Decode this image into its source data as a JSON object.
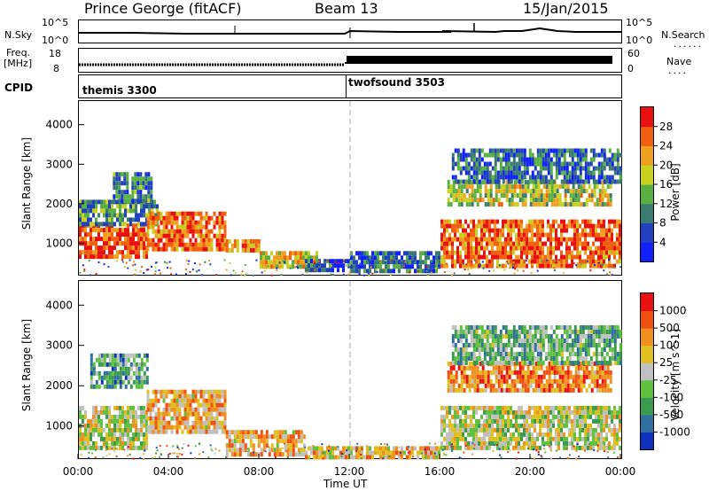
{
  "header": {
    "title": "Prince George (fitACF)",
    "beam": "Beam 13",
    "date": "15/Jan/2015"
  },
  "top_panels": {
    "nsky_label": "N.Sky",
    "nsearch_label": "N.Search",
    "freq_label_1": "Freq.",
    "freq_label_2": "[MHz]",
    "nave_label": "Nave",
    "cpid_label": "CPID",
    "nsky_ticks": [
      "10^5",
      "10^0"
    ],
    "nsearch_ticks": [
      "10^5",
      "10^0"
    ],
    "freq_ticks": [
      "18",
      "8"
    ],
    "nave_ticks": [
      "60",
      "0"
    ],
    "cpid_segments": [
      {
        "name": "themis 3300",
        "start_hour": 0,
        "end_hour": 12
      },
      {
        "name": "twofsound 3503",
        "start_hour": 12,
        "end_hour": 24
      }
    ]
  },
  "x_axis": {
    "label": "Time UT",
    "ticks": [
      "00:00",
      "04:00",
      "08:00",
      "12:00",
      "16:00",
      "20:00",
      "00:00"
    ]
  },
  "chart_data": [
    {
      "type": "heatmap",
      "panel": "power",
      "ylabel": "Slant Range [km]",
      "yticks": [
        1000,
        2000,
        3000,
        4000
      ],
      "ylim": [
        200,
        4600
      ],
      "xlim_hours": [
        0,
        24
      ],
      "colorbar_label": "Power [dB]",
      "colorbar_ticks": [
        "4",
        "8",
        "12",
        "16",
        "20",
        "24",
        "28"
      ],
      "colorbar_colors": [
        "#1020ff",
        "#2040c0",
        "#3a7a70",
        "#58b040",
        "#c8d020",
        "#f0a020",
        "#f06010",
        "#e81010"
      ],
      "bands": [
        {
          "t0": 0.0,
          "t1": 3.0,
          "r0": 700,
          "r1": 1500,
          "level": 0.85
        },
        {
          "t0": 0.0,
          "t1": 3.5,
          "r0": 1500,
          "r1": 2100,
          "level": 0.35
        },
        {
          "t0": 1.5,
          "t1": 3.2,
          "r0": 2100,
          "r1": 2800,
          "level": 0.3
        },
        {
          "t0": 3.0,
          "t1": 6.5,
          "r0": 900,
          "r1": 1800,
          "level": 0.8
        },
        {
          "t0": 6.5,
          "t1": 8.0,
          "r0": 800,
          "r1": 1100,
          "level": 0.75
        },
        {
          "t0": 8.0,
          "t1": 10.5,
          "r0": 400,
          "r1": 800,
          "level": 0.6
        },
        {
          "t0": 10.0,
          "t1": 12.0,
          "r0": 300,
          "r1": 600,
          "level": 0.2
        },
        {
          "t0": 12.0,
          "t1": 16.0,
          "r0": 300,
          "r1": 800,
          "level": 0.25
        },
        {
          "t0": 16.0,
          "t1": 24.0,
          "r0": 400,
          "r1": 1600,
          "level": 0.8
        },
        {
          "t0": 16.3,
          "t1": 23.5,
          "r0": 2000,
          "r1": 2600,
          "level": 0.55
        },
        {
          "t0": 16.5,
          "t1": 24.0,
          "r0": 2600,
          "r1": 3400,
          "level": 0.25
        }
      ]
    },
    {
      "type": "heatmap",
      "panel": "velocity",
      "ylabel": "Slant Range [km]",
      "yticks": [
        1000,
        2000,
        3000,
        4000
      ],
      "ylim": [
        200,
        4600
      ],
      "xlim_hours": [
        0,
        24
      ],
      "colorbar_label": "Velocity [m s^-1]",
      "colorbar_ticks": [
        "1000",
        "500",
        "100",
        "25",
        "-25",
        "-100",
        "-500",
        "-1000"
      ],
      "colorbar_colors": [
        "#1030c0",
        "#3070a0",
        "#3a9a50",
        "#60c040",
        "#c0c0c0",
        "#e0c020",
        "#f09020",
        "#f05010",
        "#e81010"
      ],
      "bands": [
        {
          "t0": 0.0,
          "t1": 3.0,
          "r0": 500,
          "r1": 1500,
          "level": 0.5
        },
        {
          "t0": 0.5,
          "t1": 3.0,
          "r0": 2000,
          "r1": 2800,
          "level": 0.3
        },
        {
          "t0": 3.0,
          "t1": 6.5,
          "r0": 900,
          "r1": 1900,
          "level": 0.65
        },
        {
          "t0": 6.5,
          "t1": 10.0,
          "r0": 300,
          "r1": 900,
          "level": 0.65
        },
        {
          "t0": 10.0,
          "t1": 16.0,
          "r0": 200,
          "r1": 500,
          "level": 0.6
        },
        {
          "t0": 16.0,
          "t1": 24.0,
          "r0": 400,
          "r1": 1500,
          "level": 0.5
        },
        {
          "t0": 16.3,
          "t1": 23.5,
          "r0": 1900,
          "r1": 2600,
          "level": 0.75
        },
        {
          "t0": 16.5,
          "t1": 24.0,
          "r0": 2600,
          "r1": 3500,
          "level": 0.35
        }
      ]
    }
  ]
}
